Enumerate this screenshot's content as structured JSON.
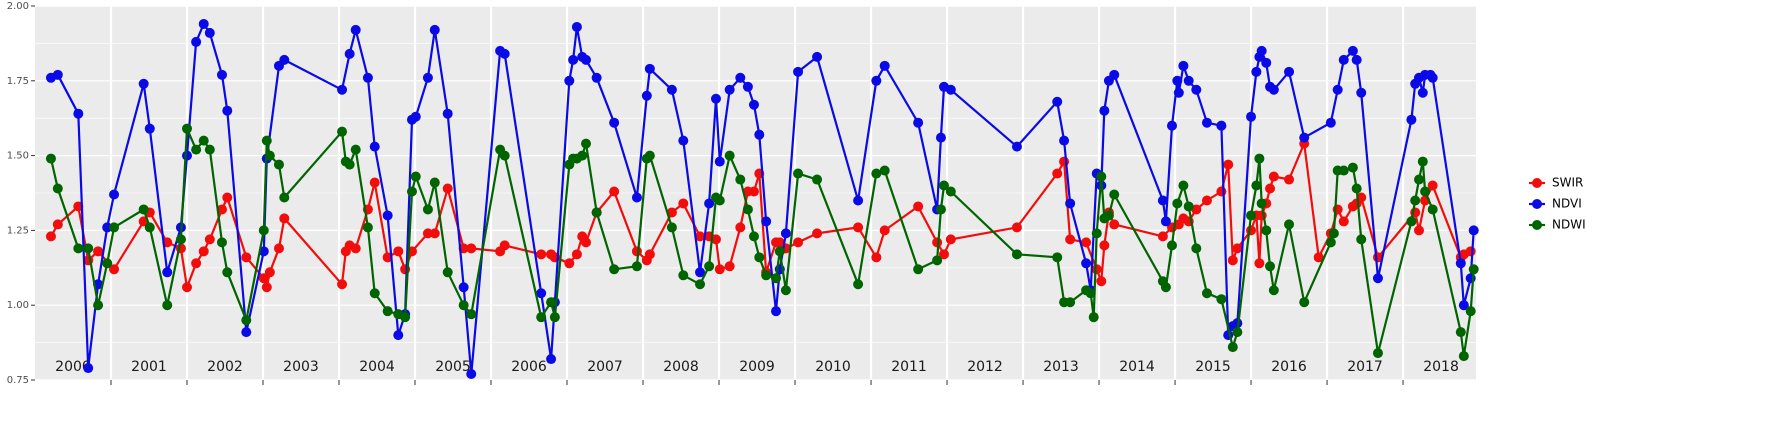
{
  "chart_data": {
    "type": "line",
    "xlim": [
      2000,
      2018.96
    ],
    "xticks": [
      2001,
      2002,
      2003,
      2004,
      2005,
      2006,
      2007,
      2008,
      2009,
      2010,
      2011,
      2012,
      2013,
      2014,
      2015,
      2016,
      2017,
      2018
    ],
    "ylim": [
      0.75,
      2.0
    ],
    "yticks": [
      {
        "value": 0.75,
        "label": "0.75"
      },
      {
        "value": 1,
        "label": "1.00"
      },
      1.25,
      {
        "value": 1.5,
        "label": "1.50"
      },
      1.75,
      {
        "value": 2,
        "label": "2.00"
      }
    ],
    "grid": true,
    "legend": "right",
    "annotations": [
      {
        "text": "2000",
        "x": 2000.5
      },
      {
        "text": "2001",
        "x": 2001.5
      },
      {
        "text": "2002",
        "x": 2002.5
      },
      {
        "text": "2003",
        "x": 2003.5
      },
      {
        "text": "2004",
        "x": 2004.5
      },
      {
        "text": "2005",
        "x": 2005.5
      },
      {
        "text": "2006",
        "x": 2006.5
      },
      {
        "text": "2007",
        "x": 2007.5
      },
      {
        "text": "2008",
        "x": 2008.5
      },
      {
        "text": "2009",
        "x": 2009.5
      },
      {
        "text": "2010",
        "x": 2010.5
      },
      {
        "text": "2011",
        "x": 2011.5
      },
      {
        "text": "2012",
        "x": 2012.5
      },
      {
        "text": "2013",
        "x": 2013.5
      },
      {
        "text": "2014",
        "x": 2014.5
      },
      {
        "text": "2015",
        "x": 2015.5
      },
      {
        "text": "2016",
        "x": 2016.5
      },
      {
        "text": "2017",
        "x": 2017.5
      },
      {
        "text": "2018",
        "x": 2018.5
      }
    ],
    "series": [
      {
        "name": "SWIR",
        "color": "#f20d0d",
        "x": [
          2000.21,
          2000.3,
          2000.57,
          2000.7,
          2000.83,
          2001.04,
          2001.43,
          2001.51,
          2001.74,
          2001.92,
          2002.0,
          2002.12,
          2002.22,
          2002.3,
          2002.46,
          2002.53,
          2002.78,
          2003.01,
          2003.05,
          2003.09,
          2003.21,
          2003.28,
          2004.04,
          2004.09,
          2004.14,
          2004.22,
          2004.38,
          2004.47,
          2004.64,
          2004.78,
          2004.87,
          2004.96,
          2005.17,
          2005.26,
          2005.43,
          2005.64,
          2005.74,
          2006.12,
          2006.18,
          2006.66,
          2006.79,
          2006.84,
          2007.03,
          2007.13,
          2007.2,
          2007.25,
          2007.39,
          2007.62,
          2007.92,
          2008.05,
          2008.09,
          2008.38,
          2008.53,
          2008.75,
          2008.87,
          2008.96,
          2009.01,
          2009.14,
          2009.28,
          2009.38,
          2009.46,
          2009.53,
          2009.62,
          2009.75,
          2009.8,
          2009.88,
          2010.04,
          2010.29,
          2010.83,
          2011.07,
          2011.18,
          2011.62,
          2011.87,
          2011.96,
          2012.05,
          2012.92,
          2013.45,
          2013.54,
          2013.62,
          2013.83,
          2013.97,
          2014.03,
          2014.07,
          2014.13,
          2014.2,
          2014.84,
          2014.96,
          2015.05,
          2015.11,
          2015.18,
          2015.28,
          2015.42,
          2015.61,
          2015.7,
          2015.76,
          2015.82,
          2016.0,
          2016.07,
          2016.11,
          2016.14,
          2016.2,
          2016.25,
          2016.3,
          2016.5,
          2016.7,
          2016.89,
          2017.05,
          2017.14,
          2017.22,
          2017.34,
          2017.39,
          2017.45,
          2017.67,
          2018.16,
          2018.21,
          2018.29,
          2018.39,
          2018.76,
          2018.8,
          2018.89
        ],
        "values": [
          1.23,
          1.27,
          1.33,
          1.15,
          1.18,
          1.12,
          1.28,
          1.31,
          1.21,
          1.19,
          1.06,
          1.14,
          1.18,
          1.22,
          1.32,
          1.36,
          1.16,
          1.09,
          1.06,
          1.11,
          1.19,
          1.29,
          1.07,
          1.18,
          1.2,
          1.19,
          1.32,
          1.41,
          1.16,
          1.18,
          1.12,
          1.18,
          1.24,
          1.24,
          1.39,
          1.19,
          1.19,
          1.18,
          1.2,
          1.17,
          1.17,
          1.16,
          1.14,
          1.17,
          1.23,
          1.21,
          1.31,
          1.38,
          1.18,
          1.15,
          1.17,
          1.31,
          1.34,
          1.23,
          1.23,
          1.22,
          1.12,
          1.13,
          1.26,
          1.38,
          1.38,
          1.44,
          1.11,
          1.21,
          1.21,
          1.19,
          1.21,
          1.24,
          1.26,
          1.16,
          1.25,
          1.33,
          1.21,
          1.17,
          1.22,
          1.26,
          1.44,
          1.48,
          1.22,
          1.21,
          1.12,
          1.08,
          1.2,
          1.31,
          1.27,
          1.23,
          1.26,
          1.27,
          1.29,
          1.28,
          1.32,
          1.35,
          1.38,
          1.47,
          1.15,
          1.19,
          1.25,
          1.3,
          1.14,
          1.3,
          1.34,
          1.39,
          1.43,
          1.42,
          1.54,
          1.16,
          1.24,
          1.32,
          1.28,
          1.33,
          1.34,
          1.36,
          1.16,
          1.31,
          1.25,
          1.35,
          1.4,
          1.16,
          1.17,
          1.18
        ]
      },
      {
        "name": "NDVI",
        "color": "#0a0ae6",
        "x": [
          2000.21,
          2000.3,
          2000.57,
          2000.7,
          2000.83,
          2000.95,
          2001.04,
          2001.43,
          2001.51,
          2001.74,
          2001.92,
          2002.0,
          2002.12,
          2002.22,
          2002.3,
          2002.46,
          2002.53,
          2002.78,
          2003.01,
          2003.05,
          2003.21,
          2003.28,
          2004.04,
          2004.14,
          2004.22,
          2004.38,
          2004.47,
          2004.64,
          2004.78,
          2004.87,
          2004.96,
          2005.01,
          2005.17,
          2005.26,
          2005.43,
          2005.64,
          2005.74,
          2006.12,
          2006.18,
          2006.66,
          2006.79,
          2006.84,
          2007.03,
          2007.08,
          2007.13,
          2007.2,
          2007.25,
          2007.39,
          2007.62,
          2007.92,
          2008.05,
          2008.09,
          2008.38,
          2008.53,
          2008.75,
          2008.87,
          2008.96,
          2009.01,
          2009.14,
          2009.28,
          2009.38,
          2009.46,
          2009.53,
          2009.62,
          2009.75,
          2009.8,
          2009.88,
          2010.04,
          2010.29,
          2010.83,
          2011.07,
          2011.18,
          2011.62,
          2011.87,
          2011.92,
          2011.96,
          2012.05,
          2012.92,
          2013.45,
          2013.54,
          2013.62,
          2013.83,
          2013.89,
          2013.97,
          2014.03,
          2014.07,
          2014.13,
          2014.2,
          2014.84,
          2014.88,
          2014.96,
          2015.03,
          2015.05,
          2015.11,
          2015.18,
          2015.28,
          2015.42,
          2015.61,
          2015.7,
          2015.76,
          2015.82,
          2016.0,
          2016.07,
          2016.11,
          2016.14,
          2016.2,
          2016.25,
          2016.3,
          2016.5,
          2016.7,
          2017.05,
          2017.14,
          2017.22,
          2017.34,
          2017.39,
          2017.45,
          2017.67,
          2018.11,
          2018.16,
          2018.21,
          2018.26,
          2018.29,
          2018.36,
          2018.39,
          2018.76,
          2018.8,
          2018.89,
          2018.93
        ],
        "values": [
          1.76,
          1.77,
          1.64,
          0.79,
          1.07,
          1.26,
          1.37,
          1.74,
          1.59,
          1.11,
          1.26,
          1.5,
          1.88,
          1.94,
          1.91,
          1.77,
          1.65,
          0.91,
          1.18,
          1.49,
          1.8,
          1.82,
          1.72,
          1.84,
          1.92,
          1.76,
          1.53,
          1.3,
          0.9,
          0.97,
          1.62,
          1.63,
          1.76,
          1.92,
          1.64,
          1.06,
          0.77,
          1.85,
          1.84,
          1.04,
          0.82,
          1.01,
          1.75,
          1.82,
          1.93,
          1.83,
          1.82,
          1.76,
          1.61,
          1.36,
          1.7,
          1.79,
          1.72,
          1.55,
          1.11,
          1.34,
          1.69,
          1.48,
          1.72,
          1.76,
          1.73,
          1.67,
          1.57,
          1.28,
          0.98,
          1.12,
          1.24,
          1.78,
          1.83,
          1.35,
          1.75,
          1.8,
          1.61,
          1.32,
          1.56,
          1.73,
          1.72,
          1.53,
          1.68,
          1.55,
          1.34,
          1.14,
          1.05,
          1.44,
          1.4,
          1.65,
          1.75,
          1.77,
          1.35,
          1.28,
          1.6,
          1.75,
          1.71,
          1.8,
          1.75,
          1.72,
          1.61,
          1.6,
          0.9,
          0.93,
          0.94,
          1.63,
          1.78,
          1.83,
          1.85,
          1.81,
          1.73,
          1.72,
          1.78,
          1.56,
          1.61,
          1.72,
          1.82,
          1.85,
          1.82,
          1.71,
          1.09,
          1.62,
          1.74,
          1.76,
          1.71,
          1.77,
          1.77,
          1.76,
          1.14,
          1.0,
          1.09,
          1.25
        ]
      },
      {
        "name": "NDWI",
        "color": "#006400",
        "x": [
          2000.21,
          2000.3,
          2000.57,
          2000.7,
          2000.83,
          2000.95,
          2001.04,
          2001.43,
          2001.51,
          2001.74,
          2001.92,
          2002.0,
          2002.12,
          2002.22,
          2002.3,
          2002.46,
          2002.53,
          2002.78,
          2003.01,
          2003.05,
          2003.09,
          2003.21,
          2003.28,
          2004.04,
          2004.09,
          2004.14,
          2004.22,
          2004.38,
          2004.47,
          2004.64,
          2004.78,
          2004.87,
          2004.96,
          2005.01,
          2005.17,
          2005.26,
          2005.43,
          2005.64,
          2005.74,
          2006.12,
          2006.18,
          2006.66,
          2006.79,
          2006.84,
          2007.03,
          2007.08,
          2007.13,
          2007.2,
          2007.25,
          2007.39,
          2007.62,
          2007.92,
          2008.05,
          2008.09,
          2008.38,
          2008.53,
          2008.75,
          2008.87,
          2008.96,
          2009.01,
          2009.14,
          2009.28,
          2009.38,
          2009.46,
          2009.53,
          2009.62,
          2009.75,
          2009.8,
          2009.88,
          2010.04,
          2010.29,
          2010.83,
          2011.07,
          2011.18,
          2011.62,
          2011.87,
          2011.92,
          2011.96,
          2012.05,
          2012.92,
          2013.45,
          2013.54,
          2013.62,
          2013.83,
          2013.89,
          2013.93,
          2013.97,
          2014.03,
          2014.07,
          2014.13,
          2014.2,
          2014.84,
          2014.88,
          2014.96,
          2015.03,
          2015.11,
          2015.18,
          2015.28,
          2015.42,
          2015.61,
          2015.76,
          2015.82,
          2016.0,
          2016.07,
          2016.11,
          2016.14,
          2016.2,
          2016.25,
          2016.3,
          2016.5,
          2016.7,
          2017.05,
          2017.09,
          2017.14,
          2017.22,
          2017.34,
          2017.39,
          2017.45,
          2017.67,
          2018.11,
          2018.16,
          2018.21,
          2018.26,
          2018.29,
          2018.39,
          2018.76,
          2018.8,
          2018.89,
          2018.93
        ],
        "values": [
          1.49,
          1.39,
          1.19,
          1.19,
          1.0,
          1.14,
          1.26,
          1.32,
          1.26,
          1.0,
          1.22,
          1.59,
          1.52,
          1.55,
          1.52,
          1.21,
          1.11,
          0.95,
          1.25,
          1.55,
          1.5,
          1.47,
          1.36,
          1.58,
          1.48,
          1.47,
          1.52,
          1.26,
          1.04,
          0.98,
          0.97,
          0.96,
          1.38,
          1.43,
          1.32,
          1.41,
          1.11,
          1.0,
          0.97,
          1.52,
          1.5,
          0.96,
          1.01,
          0.96,
          1.47,
          1.49,
          1.49,
          1.5,
          1.54,
          1.31,
          1.12,
          1.13,
          1.49,
          1.5,
          1.26,
          1.1,
          1.07,
          1.13,
          1.36,
          1.35,
          1.5,
          1.42,
          1.32,
          1.23,
          1.16,
          1.1,
          1.09,
          1.18,
          1.05,
          1.44,
          1.42,
          1.07,
          1.44,
          1.45,
          1.12,
          1.15,
          1.32,
          1.4,
          1.38,
          1.17,
          1.16,
          1.01,
          1.01,
          1.05,
          1.04,
          0.96,
          1.24,
          1.43,
          1.29,
          1.3,
          1.37,
          1.08,
          1.06,
          1.2,
          1.34,
          1.4,
          1.33,
          1.19,
          1.04,
          1.02,
          0.86,
          0.91,
          1.3,
          1.4,
          1.49,
          1.34,
          1.25,
          1.13,
          1.05,
          1.27,
          1.01,
          1.21,
          1.24,
          1.45,
          1.45,
          1.46,
          1.39,
          1.22,
          0.84,
          1.28,
          1.35,
          1.42,
          1.48,
          1.38,
          1.32,
          0.91,
          0.83,
          0.98,
          1.12
        ]
      }
    ]
  }
}
